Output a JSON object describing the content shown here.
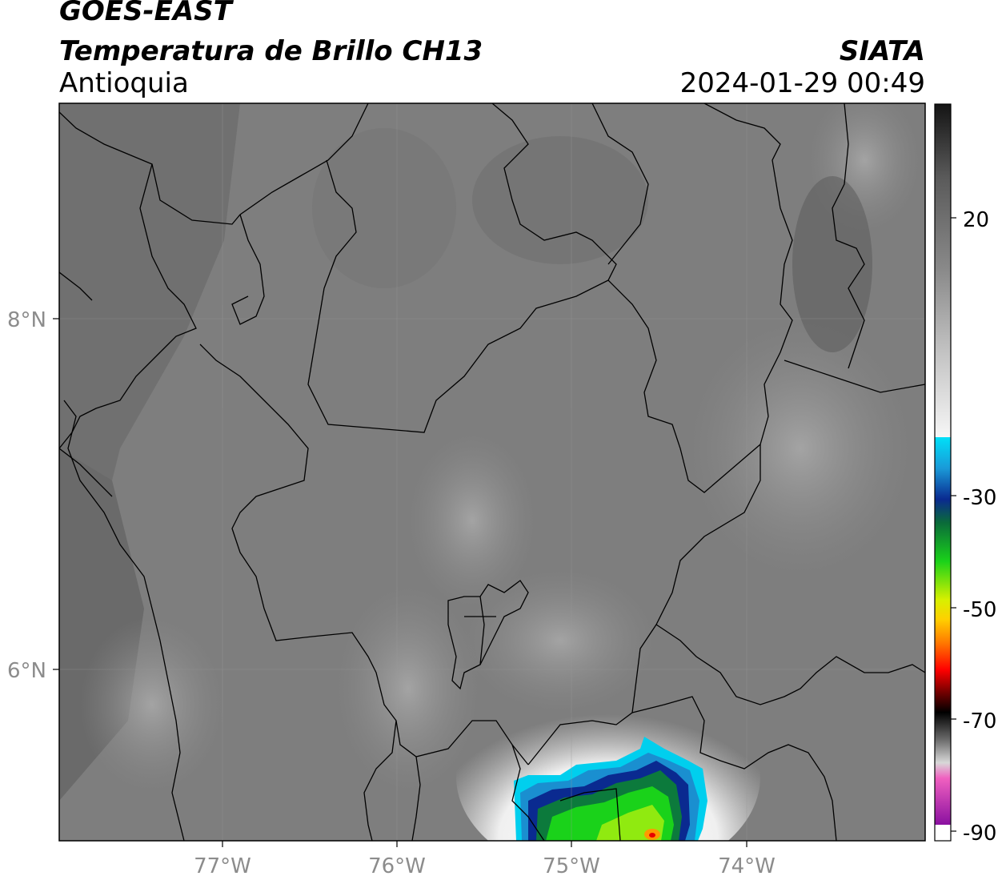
{
  "header": {
    "line1": "GOES-EAST",
    "line2": "Temperatura de Brillo CH13",
    "line3": "Antioquia",
    "org": "SIATA",
    "datetime": "2024-01-29 00:49"
  },
  "map": {
    "lat_ticks": [
      "8°N",
      "6°N"
    ],
    "lon_ticks": [
      "77°W",
      "76°W",
      "75°W",
      "74°W"
    ]
  },
  "colorbar": {
    "ticks": [
      "20",
      "-30",
      "-50",
      "-70",
      "-90"
    ],
    "colors": {
      "warm_dark": "#141414",
      "warm_mid": "#8a8a8a",
      "warm_light": "#f2f2f2",
      "cyan": "#00d8f0",
      "blue": "#0a2a90",
      "green": "#1ad21a",
      "yellow": "#f0f000",
      "orange": "#ff8c00",
      "red": "#e00000",
      "black": "#000000",
      "grey": "#9a9a9a",
      "pink": "#f060c0",
      "purple": "#9010a0"
    }
  }
}
